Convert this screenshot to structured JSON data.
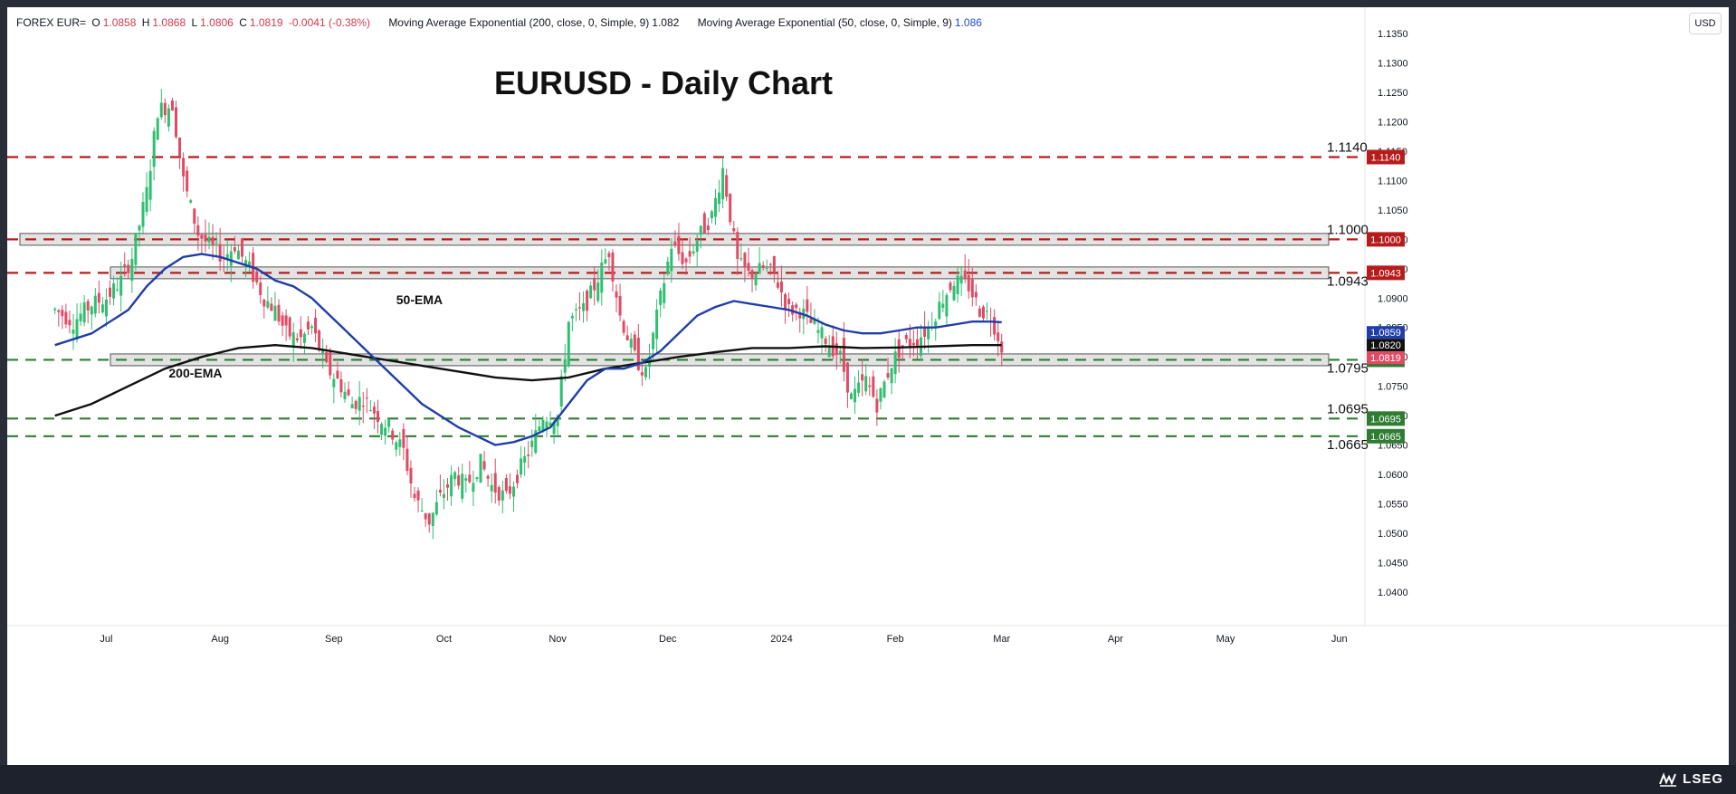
{
  "header": {
    "symbol": "FOREX EUR=",
    "open_label": "O",
    "open": "1.0858",
    "high_label": "H",
    "high": "1.0868",
    "low_label": "L",
    "low": "1.0806",
    "close_label": "C",
    "close": "1.0819",
    "change": "-0.0041 (-0.38%)",
    "ema200_label": "Moving Average Exponential (200, close, 0, Simple, 9)",
    "ema200_value": "1.082",
    "ema50_label": "Moving Average Exponential (50, close, 0, Simple, 9)",
    "ema50_value": "1.086",
    "currency": "USD"
  },
  "footer": {
    "brand": "LSEG"
  },
  "colors": {
    "up": "#26a69a",
    "up_candle": "#2fbf71",
    "down": "#e04a63",
    "ema50": "#1f3ea8",
    "ema200": "#111111",
    "resistance": "#b71c1c",
    "support": "#2e7d32",
    "zone_fill": "#d9d9d9"
  },
  "chart_data": {
    "type": "candlestick",
    "title": "EURUSD - Daily Chart",
    "ylim": [
      1.0355,
      1.1395
    ],
    "y_ticks": [
      "1.1350",
      "1.1300",
      "1.1250",
      "1.1200",
      "1.1150",
      "1.1100",
      "1.1050",
      "1.1000",
      "1.0950",
      "1.0900",
      "1.0850",
      "1.0800",
      "1.0750",
      "1.0700",
      "1.0650",
      "1.0600",
      "1.0550",
      "1.0500",
      "1.0450",
      "1.0400"
    ],
    "x_labels": [
      "Jul",
      "Aug",
      "Sep",
      "Oct",
      "Nov",
      "Dec",
      "2024",
      "Feb",
      "Mar",
      "Apr",
      "May",
      "Jun"
    ],
    "x_label_days": [
      14,
      45,
      76,
      106,
      137,
      167,
      198,
      229,
      258,
      289,
      319,
      350
    ],
    "horizontal_levels": [
      {
        "value": 1.114,
        "label": "1.1140",
        "kind": "resistance"
      },
      {
        "value": 1.1,
        "label": "1.1000",
        "kind": "resistance"
      },
      {
        "value": 1.0943,
        "label": "1.0943",
        "kind": "resistance"
      },
      {
        "value": 1.0795,
        "label": "1.0795",
        "kind": "support"
      },
      {
        "value": 1.0695,
        "label": "1.0695",
        "kind": "support"
      },
      {
        "value": 1.0665,
        "label": "1.0665",
        "kind": "support"
      }
    ],
    "zones": [
      {
        "from": 1.099,
        "to": 1.101
      },
      {
        "from": 1.0933,
        "to": 1.0953
      },
      {
        "from": 1.0785,
        "to": 1.0805
      }
    ],
    "price_tags": [
      {
        "value": 1.0859,
        "label": "1.0859",
        "kind": "ema50"
      },
      {
        "value": 1.082,
        "label": "1.0820",
        "kind": "ema200"
      },
      {
        "value": 1.0819,
        "label": "1.0819",
        "kind": "last"
      }
    ],
    "annotations": [
      {
        "text": "50-EMA",
        "day": 93,
        "value": 1.089
      },
      {
        "text": "200-EMA",
        "day": 31,
        "value": 1.0765
      }
    ],
    "closes_weekly": [
      [
        0,
        1.088
      ],
      [
        5,
        1.086
      ],
      [
        10,
        1.089
      ],
      [
        14,
        1.09
      ],
      [
        18,
        1.093
      ],
      [
        21,
        1.097
      ],
      [
        25,
        1.108
      ],
      [
        28,
        1.122
      ],
      [
        32,
        1.123
      ],
      [
        35,
        1.11
      ],
      [
        39,
        1.101
      ],
      [
        42,
        1.099
      ],
      [
        46,
        1.097
      ],
      [
        49,
        1.099
      ],
      [
        53,
        1.095
      ],
      [
        57,
        1.09
      ],
      [
        60,
        1.088
      ],
      [
        63,
        1.084
      ],
      [
        67,
        1.083
      ],
      [
        70,
        1.085
      ],
      [
        74,
        1.078
      ],
      [
        77,
        1.076
      ],
      [
        81,
        1.072
      ],
      [
        84,
        1.073
      ],
      [
        88,
        1.07
      ],
      [
        91,
        1.068
      ],
      [
        95,
        1.064
      ],
      [
        98,
        1.056
      ],
      [
        102,
        1.052
      ],
      [
        105,
        1.056
      ],
      [
        109,
        1.06
      ],
      [
        112,
        1.058
      ],
      [
        116,
        1.062
      ],
      [
        119,
        1.058
      ],
      [
        123,
        1.056
      ],
      [
        126,
        1.06
      ],
      [
        130,
        1.065
      ],
      [
        133,
        1.07
      ],
      [
        137,
        1.07
      ],
      [
        140,
        1.086
      ],
      [
        144,
        1.088
      ],
      [
        147,
        1.092
      ],
      [
        151,
        1.098
      ],
      [
        154,
        1.087
      ],
      [
        158,
        1.08
      ],
      [
        161,
        1.077
      ],
      [
        165,
        1.09
      ],
      [
        168,
        1.099
      ],
      [
        172,
        1.096
      ],
      [
        175,
        1.1
      ],
      [
        179,
        1.104
      ],
      [
        182,
        1.112
      ],
      [
        186,
        1.096
      ],
      [
        189,
        1.094
      ],
      [
        193,
        1.095
      ],
      [
        196,
        1.094
      ],
      [
        200,
        1.088
      ],
      [
        203,
        1.088
      ],
      [
        207,
        1.085
      ],
      [
        210,
        1.083
      ],
      [
        214,
        1.08
      ],
      [
        217,
        1.073
      ],
      [
        221,
        1.076
      ],
      [
        224,
        1.072
      ],
      [
        228,
        1.079
      ],
      [
        231,
        1.082
      ],
      [
        235,
        1.083
      ],
      [
        238,
        1.085
      ],
      [
        242,
        1.09
      ],
      [
        245,
        1.093
      ],
      [
        249,
        1.092
      ],
      [
        252,
        1.088
      ],
      [
        255,
        1.087
      ],
      [
        258,
        1.0819
      ]
    ],
    "ema50": [
      [
        0,
        1.082
      ],
      [
        10,
        1.084
      ],
      [
        20,
        1.088
      ],
      [
        25,
        1.092
      ],
      [
        30,
        1.095
      ],
      [
        35,
        1.097
      ],
      [
        40,
        1.0975
      ],
      [
        45,
        1.097
      ],
      [
        50,
        1.096
      ],
      [
        55,
        1.095
      ],
      [
        60,
        1.093
      ],
      [
        65,
        1.092
      ],
      [
        70,
        1.09
      ],
      [
        75,
        1.087
      ],
      [
        80,
        1.084
      ],
      [
        85,
        1.081
      ],
      [
        90,
        1.078
      ],
      [
        95,
        1.075
      ],
      [
        100,
        1.072
      ],
      [
        105,
        1.07
      ],
      [
        110,
        1.068
      ],
      [
        115,
        1.0665
      ],
      [
        120,
        1.065
      ],
      [
        125,
        1.0655
      ],
      [
        130,
        1.0665
      ],
      [
        135,
        1.068
      ],
      [
        140,
        1.072
      ],
      [
        145,
        1.076
      ],
      [
        150,
        1.078
      ],
      [
        155,
        1.078
      ],
      [
        160,
        1.079
      ],
      [
        165,
        1.081
      ],
      [
        170,
        1.084
      ],
      [
        175,
        1.087
      ],
      [
        180,
        1.0885
      ],
      [
        185,
        1.0895
      ],
      [
        190,
        1.089
      ],
      [
        195,
        1.0885
      ],
      [
        200,
        1.088
      ],
      [
        205,
        1.087
      ],
      [
        210,
        1.0855
      ],
      [
        215,
        1.0845
      ],
      [
        220,
        1.084
      ],
      [
        225,
        1.084
      ],
      [
        230,
        1.0845
      ],
      [
        235,
        1.085
      ],
      [
        240,
        1.085
      ],
      [
        245,
        1.0855
      ],
      [
        250,
        1.086
      ],
      [
        255,
        1.086
      ],
      [
        258,
        1.0859
      ]
    ],
    "ema200": [
      [
        0,
        1.07
      ],
      [
        10,
        1.072
      ],
      [
        20,
        1.075
      ],
      [
        30,
        1.078
      ],
      [
        40,
        1.08
      ],
      [
        50,
        1.0815
      ],
      [
        60,
        1.082
      ],
      [
        70,
        1.0815
      ],
      [
        80,
        1.0805
      ],
      [
        90,
        1.0795
      ],
      [
        100,
        1.0785
      ],
      [
        110,
        1.0775
      ],
      [
        120,
        1.0765
      ],
      [
        130,
        1.076
      ],
      [
        140,
        1.0765
      ],
      [
        150,
        1.078
      ],
      [
        160,
        1.079
      ],
      [
        170,
        1.08
      ],
      [
        180,
        1.0808
      ],
      [
        190,
        1.0815
      ],
      [
        200,
        1.0815
      ],
      [
        210,
        1.0818
      ],
      [
        220,
        1.0815
      ],
      [
        230,
        1.0816
      ],
      [
        240,
        1.0818
      ],
      [
        250,
        1.082
      ],
      [
        258,
        1.082
      ]
    ],
    "x_range_days": [
      -13,
      355
    ]
  }
}
